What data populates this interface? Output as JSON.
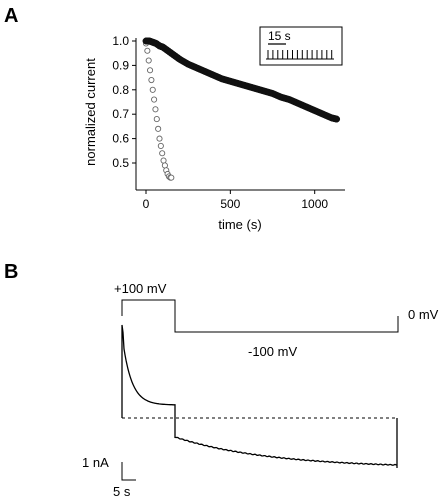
{
  "chart_data": [
    {
      "panel": "A",
      "type": "scatter",
      "xlabel": "time (s)",
      "ylabel": "normalized current",
      "xlim": [
        0,
        1150
      ],
      "ylim": [
        0.42,
        1.02
      ],
      "xticks": [
        0,
        500,
        1000
      ],
      "yticks": [
        0.5,
        0.6,
        0.7,
        0.8,
        0.9,
        1.0
      ],
      "ytick_labels": [
        "0.5",
        "0.6",
        "0.7",
        "0.8",
        "0.9",
        "1.0"
      ],
      "grid": false,
      "inset": {
        "scale_label": "15 s"
      },
      "series": [
        {
          "marker": "filled-circle",
          "color": "#111111",
          "x": [
            0,
            20,
            40,
            60,
            80,
            100,
            120,
            140,
            160,
            180,
            200,
            250,
            300,
            350,
            400,
            450,
            500,
            550,
            600,
            650,
            700,
            750,
            800,
            850,
            900,
            950,
            1000,
            1050,
            1100,
            1130
          ],
          "y": [
            1.0,
            1.0,
            0.995,
            0.99,
            0.98,
            0.975,
            0.965,
            0.955,
            0.945,
            0.935,
            0.925,
            0.905,
            0.89,
            0.875,
            0.86,
            0.845,
            0.835,
            0.825,
            0.815,
            0.805,
            0.795,
            0.785,
            0.77,
            0.76,
            0.745,
            0.73,
            0.715,
            0.7,
            0.685,
            0.68
          ]
        },
        {
          "marker": "open-circle",
          "color": "#666666",
          "x": [
            0,
            8,
            16,
            24,
            32,
            40,
            48,
            56,
            64,
            72,
            80,
            88,
            96,
            104,
            112,
            120,
            128,
            136,
            144,
            150
          ],
          "y": [
            0.99,
            0.96,
            0.92,
            0.88,
            0.84,
            0.8,
            0.76,
            0.72,
            0.68,
            0.64,
            0.6,
            0.57,
            0.54,
            0.51,
            0.49,
            0.47,
            0.455,
            0.445,
            0.44,
            0.44
          ]
        }
      ]
    },
    {
      "panel": "B",
      "type": "line",
      "protocol_labels": [
        "+100 mV",
        "0 mV",
        "-100 mV"
      ],
      "scale_bar": {
        "y_label": "1 nA",
        "x_label": "5 s"
      },
      "reference_line": "dashed zero-current baseline",
      "series": [
        {
          "name": "",
          "color": "#000000"
        }
      ]
    }
  ]
}
